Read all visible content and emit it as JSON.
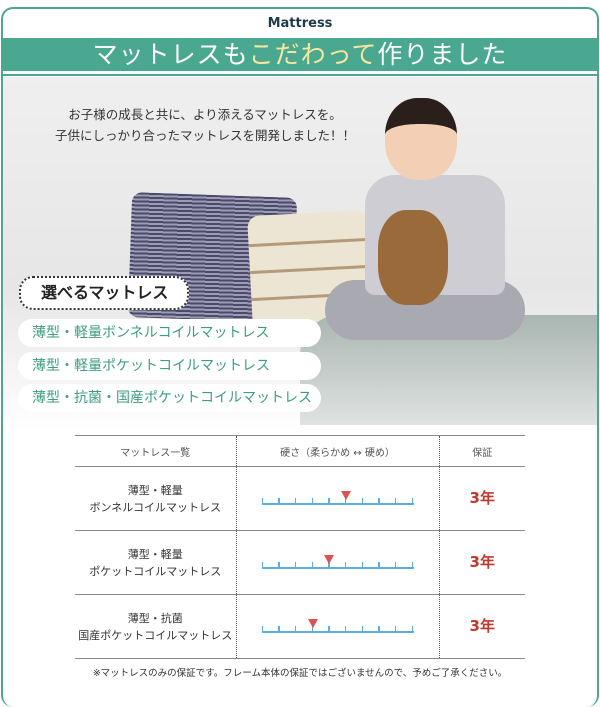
{
  "header": {
    "subtitle": "Mattress",
    "title_pre": "マットレスも",
    "title_highlight": "こだわって",
    "title_post": "作りました"
  },
  "intro": [
    "お子様の成長と共に、より添えるマットレスを。",
    "子供にしっかり合ったマットレスを開発しました！！"
  ],
  "options": {
    "heading": "選べるマットレス",
    "items": [
      "薄型・軽量ボンネルコイルマットレス",
      "薄型・軽量ポケットコイルマットレス",
      "薄型・抗菌・国産ポケットコイルマットレス"
    ]
  },
  "table": {
    "headers": [
      "マットレス一覧",
      "硬さ（柔らかめ ↔ 硬め）",
      "保証"
    ],
    "scale_ticks": 10,
    "rows": [
      {
        "line1": "薄型・軽量",
        "line2": "ボンネルコイルマットレス",
        "hardness_tick": 6,
        "warranty": "3年"
      },
      {
        "line1": "薄型・軽量",
        "line2": "ポケットコイルマットレス",
        "hardness_tick": 5,
        "warranty": "3年"
      },
      {
        "line1": "薄型・抗菌",
        "line2": "国産ポケットコイルマットレス",
        "hardness_tick": 4,
        "warranty": "3年"
      }
    ]
  },
  "note": "※マットレスのみの保証です。フレーム本体の保証ではございませんので、予めご了承ください。",
  "colors": {
    "accent": "#4aa890",
    "highlight": "#f8e6a0",
    "warranty": "#c0392b",
    "scale": "#5aaee0",
    "marker": "#d9534f"
  }
}
